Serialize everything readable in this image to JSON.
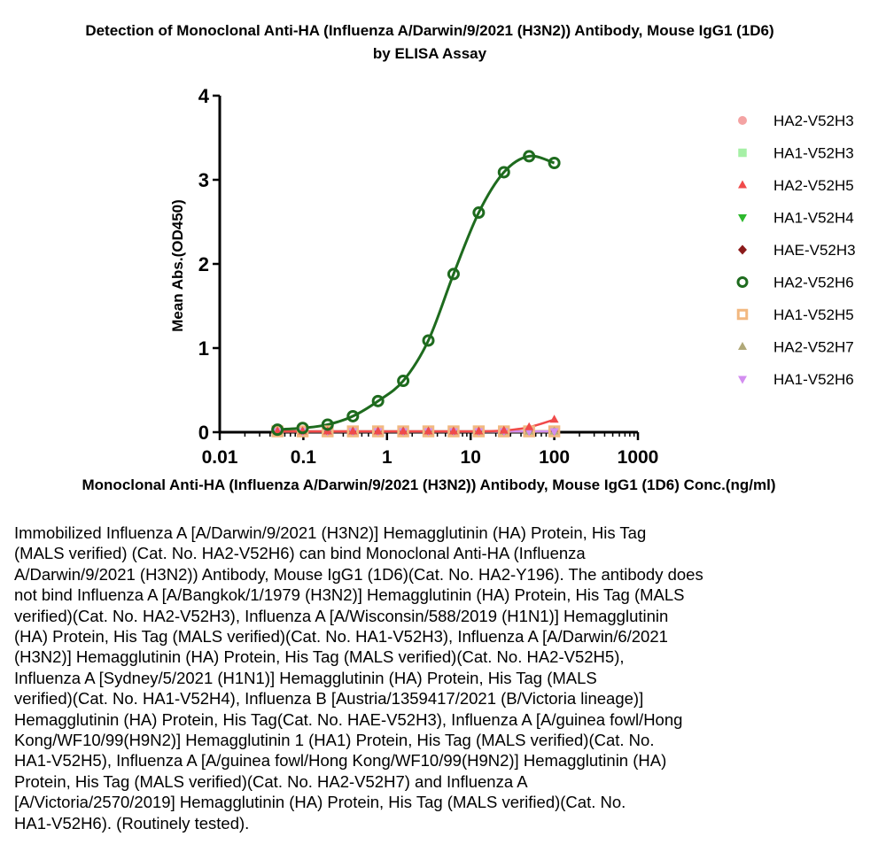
{
  "chart_data": {
    "type": "scatter",
    "title_lines": [
      "Detection of  Monoclonal Anti-HA (Influenza A/Darwin/9/2021 (H3N2)) Antibody, Mouse IgG1 (1D6)",
      "by ELISA Assay"
    ],
    "xlabel": "Monoclonal Anti-HA (Influenza A/Darwin/9/2021 (H3N2)) Antibody, Mouse IgG1 (1D6) Conc.(ng/ml)",
    "ylabel": "Mean Abs.(OD450)",
    "x_scale": "log",
    "xlim": [
      0.01,
      1000
    ],
    "ylim": [
      0,
      4
    ],
    "x_ticks": [
      0.01,
      0.1,
      1,
      10,
      100,
      1000
    ],
    "x_tick_labels": [
      "0.01",
      "0.1",
      "1",
      "10",
      "100",
      "1000"
    ],
    "y_ticks": [
      0,
      1,
      2,
      3,
      4
    ],
    "y_tick_labels": [
      "0",
      "1",
      "2",
      "3",
      "4"
    ],
    "grid": false,
    "legend_position": "right",
    "x": [
      0.049,
      0.098,
      0.195,
      0.391,
      0.781,
      1.563,
      3.125,
      6.25,
      12.5,
      25,
      50,
      100
    ],
    "series": [
      {
        "name": "HA2-V52H3",
        "marker": "circle",
        "filled": true,
        "color": "#f4a3a3",
        "values": [
          0.01,
          0.01,
          0.01,
          0.01,
          0.01,
          0.01,
          0.01,
          0.01,
          0.01,
          0.01,
          0.01,
          0.01
        ]
      },
      {
        "name": "HA1-V52H3",
        "marker": "square",
        "filled": true,
        "color": "#a6f0a6",
        "values": [
          0.01,
          0.01,
          0.01,
          0.01,
          0.01,
          0.01,
          0.01,
          0.01,
          0.01,
          0.01,
          0.01,
          0.01
        ]
      },
      {
        "name": "HA2-V52H5",
        "marker": "triangle-up",
        "filled": true,
        "color": "#f04a4a",
        "values": [
          0.01,
          0.01,
          0.01,
          0.01,
          0.01,
          0.01,
          0.01,
          0.01,
          0.01,
          0.02,
          0.06,
          0.15
        ]
      },
      {
        "name": "HA1-V52H4",
        "marker": "triangle-down",
        "filled": true,
        "color": "#2db82d",
        "values": [
          0.01,
          0.01,
          0.01,
          0.01,
          0.01,
          0.01,
          0.01,
          0.01,
          0.01,
          0.01,
          0.01,
          0.01
        ]
      },
      {
        "name": "HAE-V52H3",
        "marker": "diamond",
        "filled": true,
        "color": "#8b1a1a",
        "values": [
          0.01,
          0.01,
          0.01,
          0.01,
          0.01,
          0.01,
          0.01,
          0.01,
          0.01,
          0.01,
          0.01,
          0.01
        ]
      },
      {
        "name": "HA2-V52H6",
        "marker": "circle",
        "filled": false,
        "color": "#1e6b1e",
        "values": [
          0.03,
          0.05,
          0.09,
          0.19,
          0.37,
          0.61,
          1.09,
          1.88,
          2.61,
          3.09,
          3.28,
          3.2
        ]
      },
      {
        "name": "HA1-V52H5",
        "marker": "square",
        "filled": false,
        "color": "#f2b880",
        "values": [
          0.01,
          0.01,
          0.01,
          0.01,
          0.01,
          0.01,
          0.01,
          0.01,
          0.01,
          0.01,
          0.01,
          0.01
        ]
      },
      {
        "name": "HA2-V52H7",
        "marker": "triangle-up",
        "filled": true,
        "color": "#b0a878",
        "values": [
          0.01,
          0.01,
          0.01,
          0.01,
          0.01,
          0.01,
          0.01,
          0.01,
          0.01,
          0.01,
          0.01,
          0.01
        ]
      },
      {
        "name": "HA1-V52H6",
        "marker": "triangle-down",
        "filled": true,
        "color": "#d38ef0",
        "values": [
          0.01,
          0.01,
          0.01,
          0.01,
          0.01,
          0.01,
          0.01,
          0.01,
          0.01,
          0.01,
          0.01,
          0.01
        ]
      }
    ]
  },
  "caption_lines": [
    "Immobilized Influenza A [A/Darwin/9/2021 (H3N2)] Hemagglutinin (HA) Protein, His Tag",
    "(MALS verified) (Cat. No. HA2-V52H6)  can bind Monoclonal Anti-HA (Influenza",
    "A/Darwin/9/2021 (H3N2)) Antibody, Mouse IgG1 (1D6)(Cat. No. HA2-Y196). The antibody does",
    "not bind Influenza A [A/Bangkok/1/1979 (H3N2)] Hemagglutinin (HA) Protein, His Tag (MALS",
    "verified)(Cat. No. HA2-V52H3), Influenza A [A/Wisconsin/588/2019 (H1N1)] Hemagglutinin",
    "(HA) Protein, His Tag (MALS verified)(Cat. No. HA1-V52H3), Influenza A [A/Darwin/6/2021",
    "(H3N2)] Hemagglutinin (HA) Protein, His Tag (MALS verified)(Cat. No. HA2-V52H5),",
    "Influenza A [Sydney/5/2021 (H1N1)] Hemagglutinin (HA) Protein, His Tag (MALS",
    "verified)(Cat. No. HA1-V52H4), Influenza B [Austria/1359417/2021 (B/Victoria lineage)]",
    "Hemagglutinin (HA) Protein, His Tag(Cat. No. HAE-V52H3), Influenza A [A/guinea fowl/Hong",
    "Kong/WF10/99(H9N2)] Hemagglutinin 1 (HA1) Protein, His Tag (MALS verified)(Cat. No.",
    "HA1-V52H5), Influenza A [A/guinea fowl/Hong Kong/WF10/99(H9N2)] Hemagglutinin (HA)",
    "Protein, His Tag (MALS verified)(Cat. No. HA2-V52H7) and Influenza A",
    "[A/Victoria/2570/2019] Hemagglutinin (HA) Protein, His Tag (MALS verified)(Cat. No.",
    "HA1-V52H6). (Routinely tested)."
  ]
}
